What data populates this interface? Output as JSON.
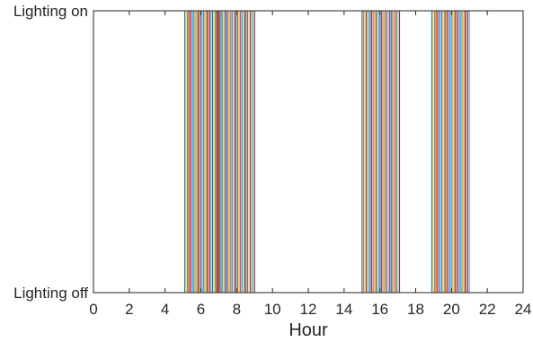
{
  "chart_data": {
    "type": "line",
    "title": "",
    "xlabel": "Hour",
    "ylabel": "",
    "xlim": [
      0,
      24
    ],
    "ylim": [
      0,
      1
    ],
    "x_ticks": [
      "0",
      "2",
      "4",
      "6",
      "8",
      "10",
      "12",
      "14",
      "16",
      "18",
      "20",
      "22",
      "24"
    ],
    "y_ticks": [
      {
        "value": 1,
        "label": "Lighting on"
      },
      {
        "value": 0,
        "label": "Lighting off"
      }
    ],
    "grid": false,
    "legend": "none",
    "series_description": "Many square-wave traces; each switches on in the morning and off later, then on again in the afternoon and off at night.",
    "colors": [
      "#0072BD",
      "#D95319",
      "#EDB120",
      "#7E2F8E",
      "#77AC30",
      "#4DBEEE",
      "#A2142F"
    ],
    "morning_on_range": [
      5.1,
      7.1
    ],
    "morning_off_range": [
      6.9,
      9.0
    ],
    "evening_on_range": [
      15.0,
      17.1
    ],
    "evening_off_range": [
      18.9,
      21.0
    ],
    "series_count": 28
  }
}
